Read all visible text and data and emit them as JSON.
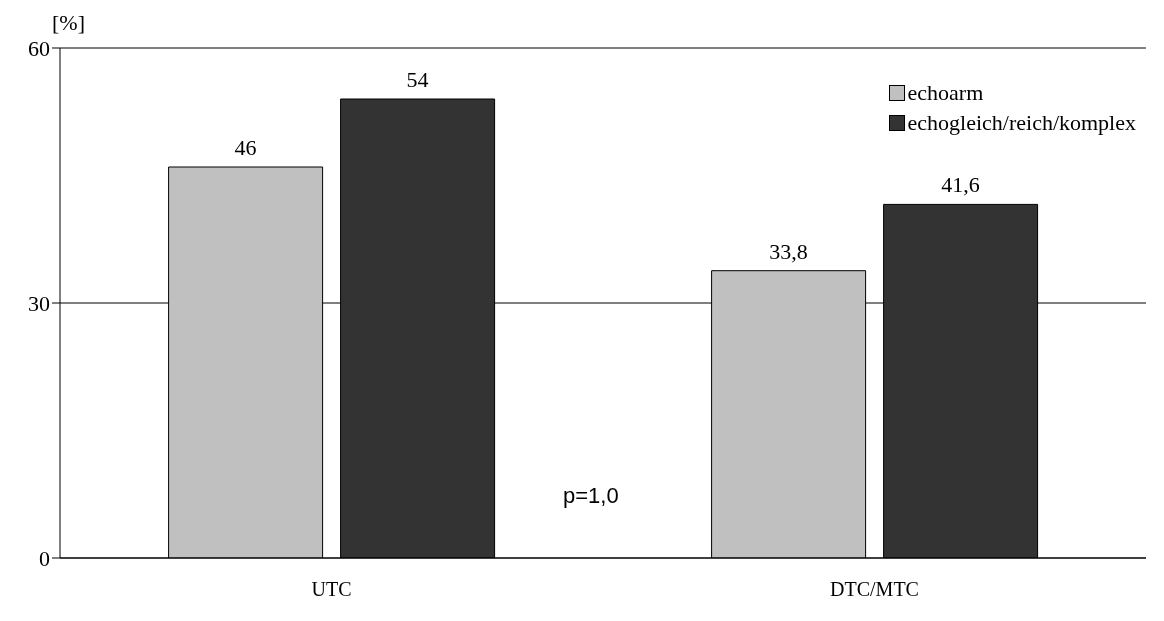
{
  "chart_data": {
    "type": "bar",
    "ylabel": "[%]",
    "categories": [
      "UTC",
      "DTC/MTC"
    ],
    "series": [
      {
        "name": "echoarm",
        "color": "#c0c0c0",
        "values": [
          46,
          33.8
        ],
        "value_labels": [
          "46",
          "33,8"
        ]
      },
      {
        "name": "echogleich/reich/komplex",
        "color": "#333333",
        "values": [
          54,
          41.6
        ],
        "value_labels": [
          "54",
          "41,6"
        ]
      }
    ],
    "ylim": [
      0,
      60
    ],
    "yticks": [
      0,
      30,
      60
    ],
    "grid": "y",
    "legend": "top right",
    "annotations": [
      "p=1,0"
    ]
  }
}
